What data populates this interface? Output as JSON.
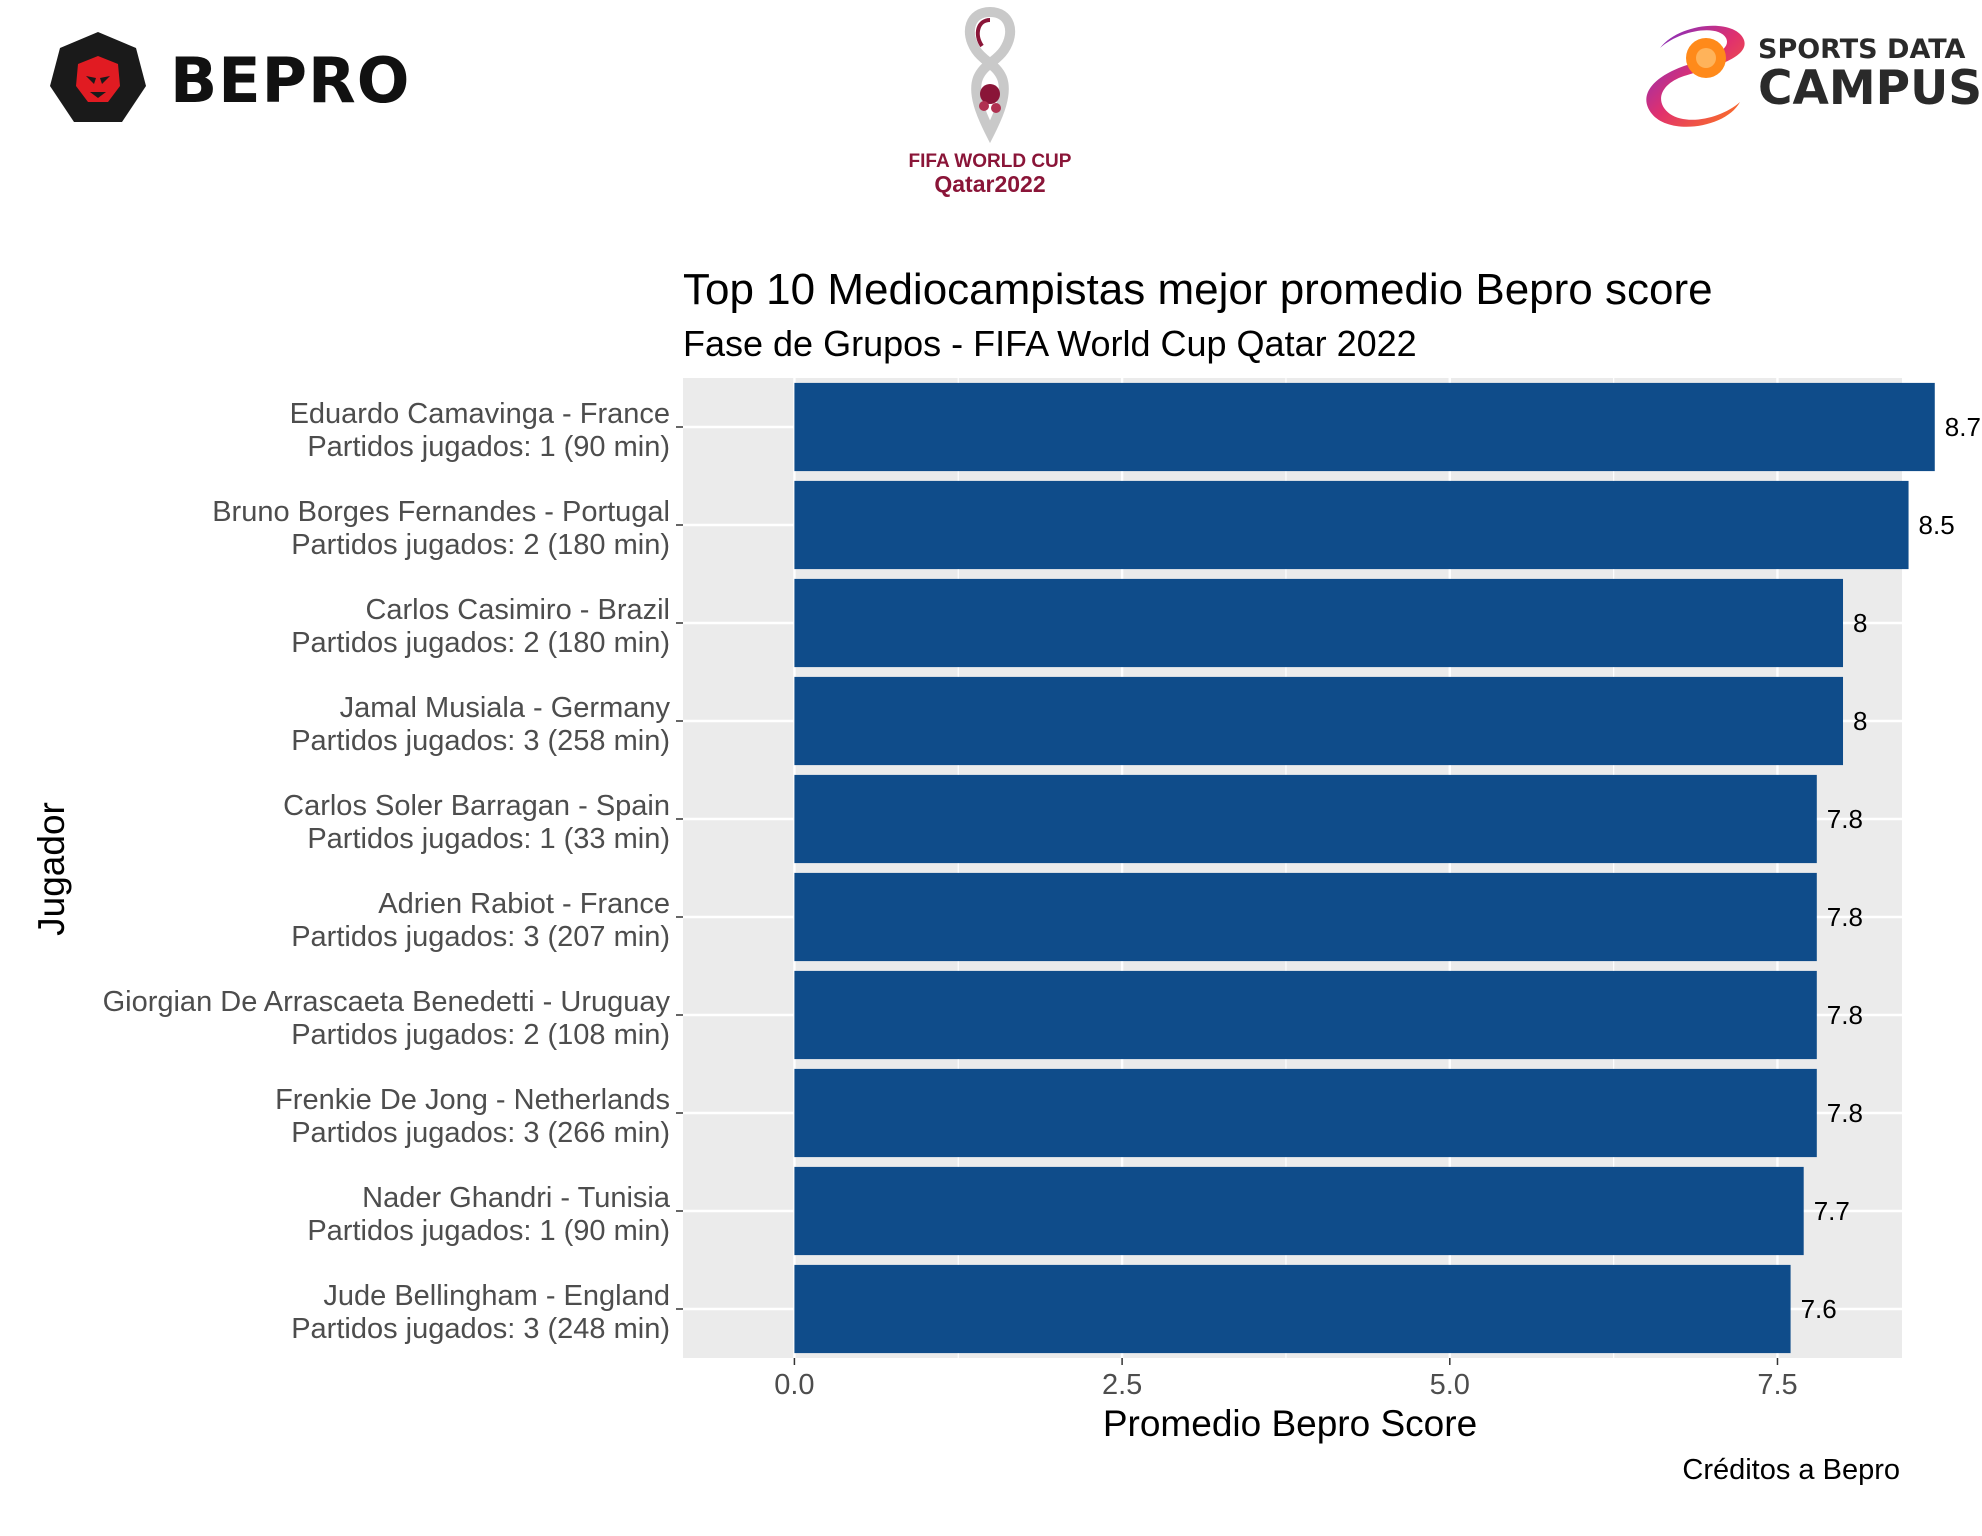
{
  "logos": {
    "bepro": {
      "text": "BEPRO"
    },
    "world_cup": {
      "line1": "FIFA WORLD CUP",
      "line2": "Qatar2022"
    },
    "sports_data_campus": {
      "line1": "SPORTS DATA",
      "line2": "CAMPUS"
    }
  },
  "colors": {
    "bar": "#0f4c8a",
    "panel": "#ebebeb",
    "grid": "#ffffff",
    "brand_red": "#e11b22",
    "wc_maroon": "#8a1538"
  },
  "chart_data": {
    "type": "bar",
    "orientation": "horizontal",
    "title": "Top 10 Mediocampistas mejor promedio Bepro score",
    "subtitle": "Fase de Grupos - FIFA World Cup Qatar 2022",
    "xlabel": "Promedio Bepro Score",
    "ylabel": "Jugador",
    "caption": "Créditos a Bepro",
    "xlim": [
      -0.85,
      8.45
    ],
    "x_ticks": [
      "0.0",
      "2.5",
      "5.0",
      "7.5"
    ],
    "x_tick_values": [
      0,
      2.5,
      5,
      7.5
    ],
    "grid": true,
    "categories": [
      {
        "name": "Eduardo Camavinga - France",
        "games": "Partidos jugados: 1 (90 min)"
      },
      {
        "name": "Bruno Borges Fernandes - Portugal",
        "games": "Partidos jugados: 2 (180 min)"
      },
      {
        "name": "Carlos Casimiro - Brazil",
        "games": "Partidos jugados: 2 (180 min)"
      },
      {
        "name": "Jamal Musiala - Germany",
        "games": "Partidos jugados: 3 (258 min)"
      },
      {
        "name": "Carlos Soler Barragan - Spain",
        "games": "Partidos jugados: 1 (33 min)"
      },
      {
        "name": "Adrien Rabiot - France",
        "games": "Partidos jugados: 3 (207 min)"
      },
      {
        "name": "Giorgian De Arrascaeta Benedetti - Uruguay",
        "games": "Partidos jugados: 2 (108 min)"
      },
      {
        "name": "Frenkie De Jong - Netherlands",
        "games": "Partidos jugados: 3 (266 min)"
      },
      {
        "name": "Nader Ghandri - Tunisia",
        "games": "Partidos jugados: 1 (90 min)"
      },
      {
        "name": "Jude Bellingham - England",
        "games": "Partidos jugados: 3 (248 min)"
      }
    ],
    "values": [
      8.7,
      8.5,
      8.0,
      8.0,
      7.8,
      7.8,
      7.8,
      7.8,
      7.7,
      7.6
    ],
    "value_labels": [
      "8.7",
      "8.5",
      "8",
      "8",
      "7.8",
      "7.8",
      "7.8",
      "7.8",
      "7.7",
      "7.6"
    ]
  }
}
